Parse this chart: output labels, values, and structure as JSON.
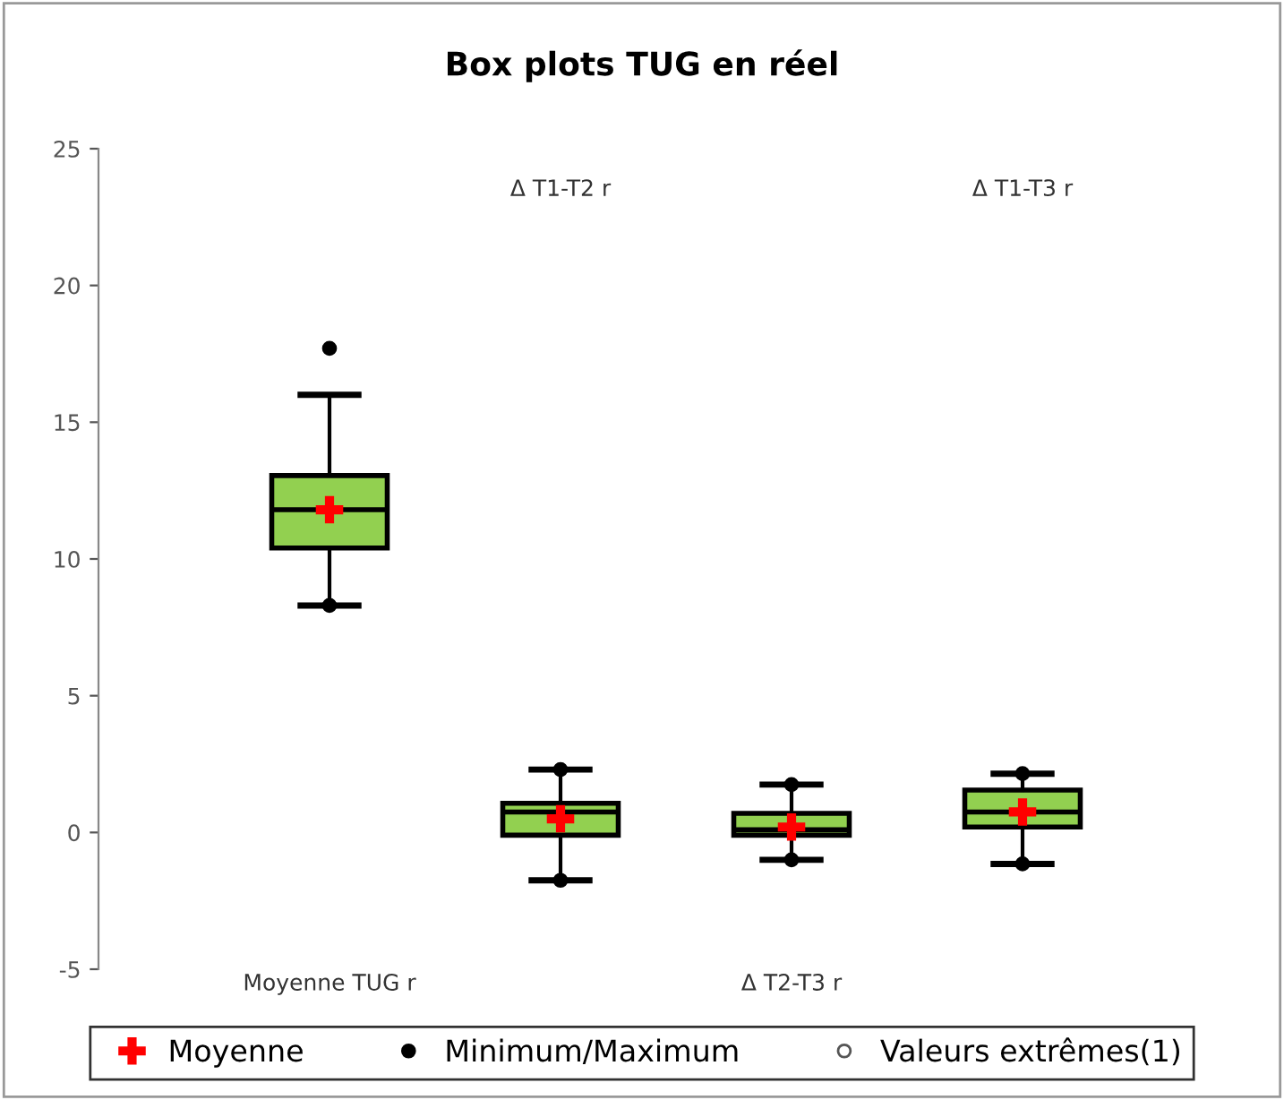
{
  "chart_data": {
    "type": "box",
    "title": "Box plots TUG en réel",
    "categories": [
      "Moyenne TUG r",
      "Δ T1-T2 r",
      "Δ T2-T3 r",
      "Δ T1-T3 r"
    ],
    "color": "#92d050",
    "boxes": [
      {
        "low": 8.3,
        "q1": 10.4,
        "median": 11.8,
        "q3": 13.05,
        "high": 16.0
      },
      {
        "low": -1.75,
        "q1": -0.1,
        "median": 0.75,
        "q3": 1.07,
        "high": 2.3
      },
      {
        "low": -1.0,
        "q1": -0.1,
        "median": 0.1,
        "q3": 0.7,
        "high": 1.75
      },
      {
        "low": -1.15,
        "q1": 0.2,
        "median": 0.75,
        "q3": 1.55,
        "high": 2.15
      }
    ],
    "series": [
      {
        "name": "Moyenne",
        "type": "scatter",
        "marker": "cross",
        "color": "#ff0000",
        "x": [
          "Moyenne TUG r",
          "Δ T1-T2 r",
          "Δ T2-T3 r",
          "Δ T1-T3 r"
        ],
        "values": [
          11.8,
          0.5,
          0.2,
          0.75
        ]
      },
      {
        "name": "Minimum/Maximum",
        "type": "scatter",
        "marker": "circle",
        "color": "#000000",
        "x": [
          "Moyenne TUG r",
          "Moyenne TUG r",
          "Δ T1-T2 r",
          "Δ T1-T2 r",
          "Δ T2-T3 r",
          "Δ T2-T3 r",
          "Δ T1-T3 r",
          "Δ T1-T3 r"
        ],
        "values": [
          8.3,
          17.7,
          -1.75,
          2.3,
          -1.0,
          1.75,
          -1.15,
          2.15
        ]
      },
      {
        "name": "Valeurs extrêmes(1)",
        "type": "scatter",
        "marker": "circle",
        "color": "#ffffff",
        "values": [
          null,
          null,
          null,
          null
        ]
      }
    ],
    "ylim": [
      -5,
      25
    ],
    "yticks": [
      -5,
      0,
      5,
      10,
      15,
      20,
      25
    ],
    "grid": false,
    "legend": "bottom"
  }
}
